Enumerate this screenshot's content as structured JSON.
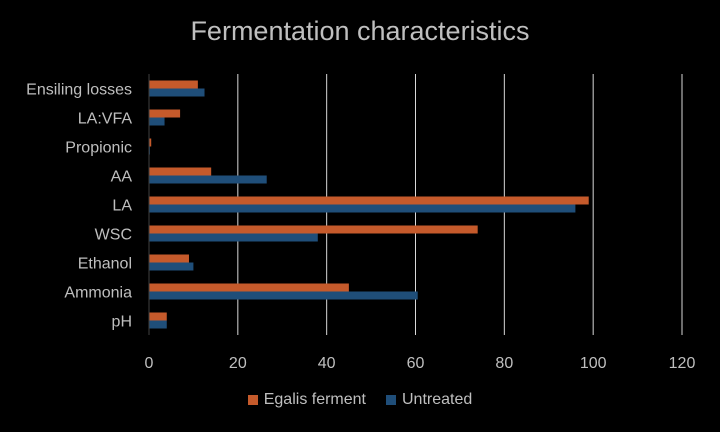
{
  "chart_data": {
    "type": "bar",
    "orientation": "horizontal",
    "title": "Fermentation characteristics",
    "xlabel": "",
    "ylabel": "",
    "xlim": [
      0,
      120
    ],
    "x_ticks": [
      "0",
      "20",
      "40",
      "60",
      "80",
      "100",
      "120"
    ],
    "grid": "vertical",
    "legend_position": "bottom",
    "categories": [
      "Ensiling losses",
      "LA:VFA",
      "Propionic",
      "AA",
      "LA",
      "WSC",
      "Ethanol",
      "Ammonia",
      "pH"
    ],
    "series": [
      {
        "name": "Egalis ferment",
        "color": "#c55a2b",
        "values": [
          11,
          7,
          0.5,
          14,
          99,
          74,
          9,
          45,
          4
        ]
      },
      {
        "name": "Untreated",
        "color": "#1f4e79",
        "values": [
          12.5,
          3.5,
          0.2,
          26.5,
          96,
          38,
          10,
          60.5,
          4
        ]
      }
    ]
  }
}
